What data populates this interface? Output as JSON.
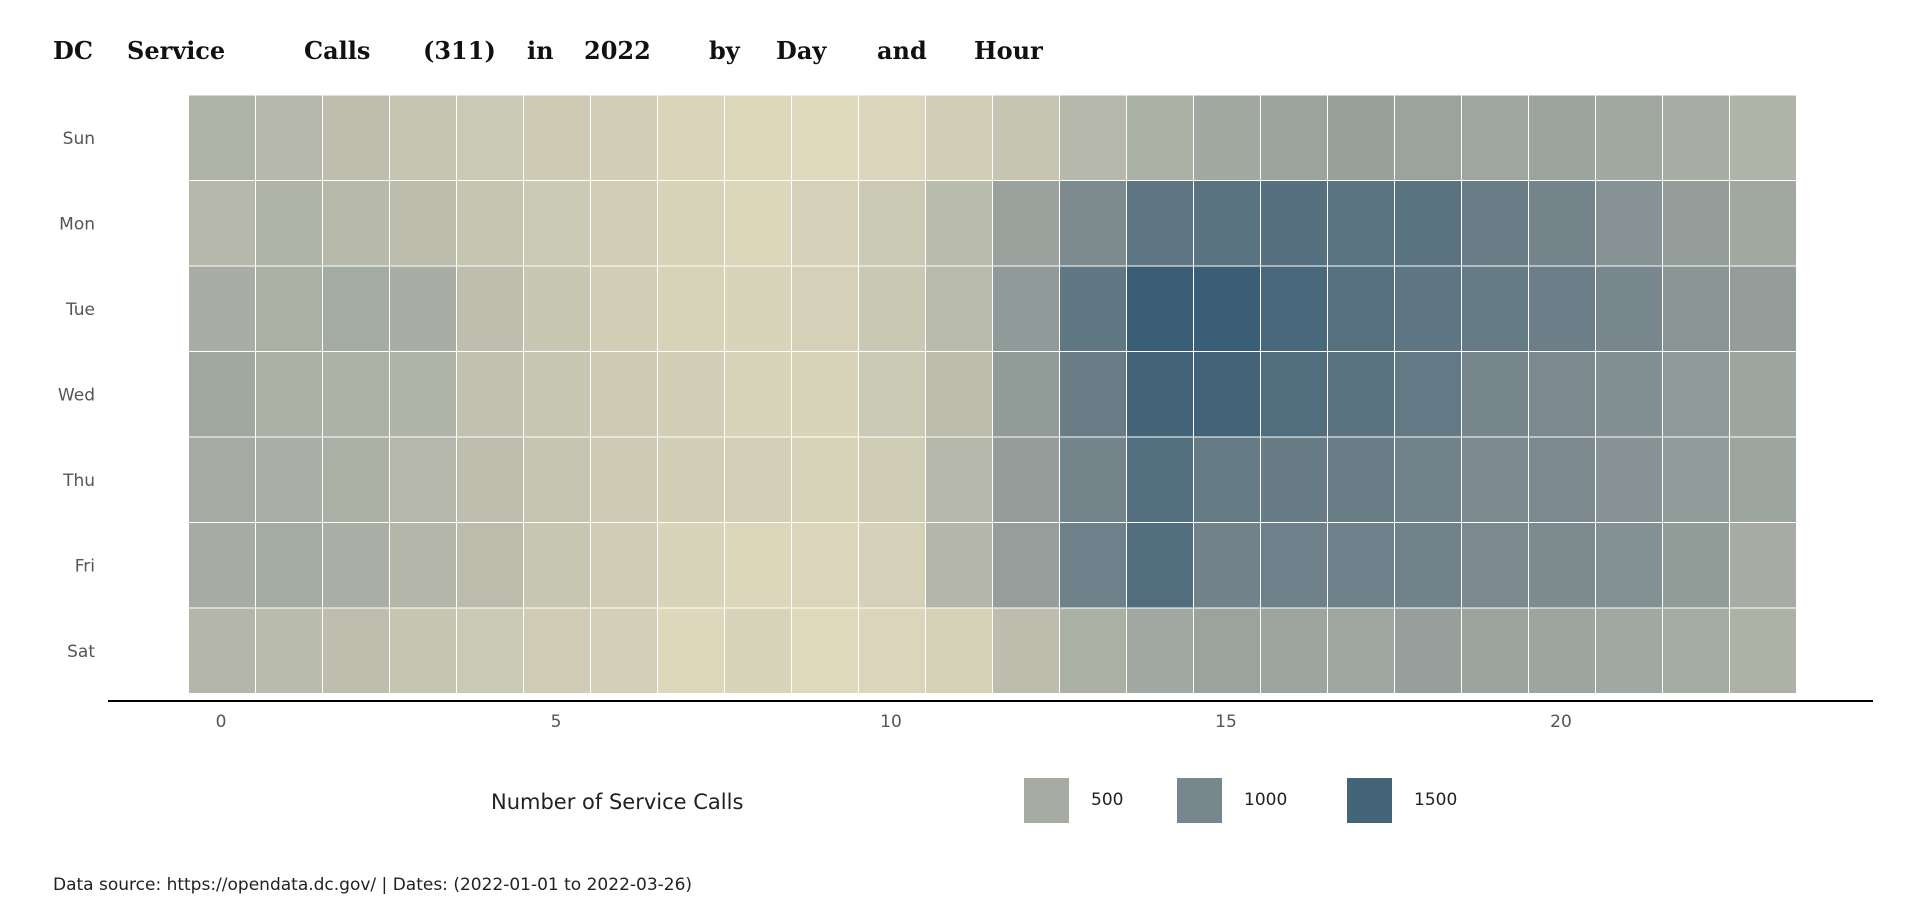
{
  "title_words": [
    "DC",
    "Service",
    "Calls",
    "(311)",
    "in",
    "2022",
    "by",
    "Day",
    "and",
    "Hour"
  ],
  "chart_data": {
    "type": "heatmap",
    "title": "DC Service Calls (311) in 2022 by Day and Hour",
    "x": [
      0,
      1,
      2,
      3,
      4,
      5,
      6,
      7,
      8,
      9,
      10,
      11,
      12,
      13,
      14,
      15,
      16,
      17,
      18,
      19,
      20,
      21,
      22,
      23
    ],
    "x_ticks": [
      "0",
      "5",
      "10",
      "15",
      "20"
    ],
    "y": [
      "Sun",
      "Mon",
      "Tue",
      "Wed",
      "Thu",
      "Fri",
      "Sat"
    ],
    "values": [
      [
        430,
        380,
        320,
        270,
        220,
        200,
        160,
        100,
        70,
        50,
        90,
        160,
        260,
        380,
        460,
        540,
        620,
        650,
        620,
        580,
        610,
        560,
        480,
        420
      ],
      [
        380,
        420,
        370,
        330,
        260,
        210,
        170,
        120,
        80,
        140,
        220,
        350,
        640,
        950,
        1250,
        1300,
        1330,
        1280,
        1300,
        1150,
        1050,
        850,
        700,
        560
      ],
      [
        480,
        460,
        520,
        480,
        320,
        240,
        170,
        120,
        110,
        140,
        230,
        350,
        740,
        1230,
        1600,
        1600,
        1450,
        1320,
        1250,
        1180,
        1120,
        1000,
        800,
        700
      ],
      [
        560,
        460,
        440,
        420,
        290,
        250,
        200,
        160,
        110,
        110,
        220,
        340,
        720,
        1150,
        1500,
        1520,
        1380,
        1300,
        1200,
        1010,
        960,
        880,
        750,
        600
      ],
      [
        510,
        470,
        460,
        390,
        320,
        260,
        200,
        160,
        150,
        120,
        190,
        380,
        700,
        1050,
        1350,
        1180,
        1160,
        1150,
        1080,
        960,
        960,
        850,
        730,
        600
      ],
      [
        500,
        520,
        470,
        400,
        340,
        250,
        180,
        110,
        80,
        90,
        140,
        400,
        690,
        1100,
        1370,
        1070,
        1100,
        1100,
        1080,
        960,
        950,
        870,
        720,
        500
      ],
      [
        400,
        350,
        320,
        260,
        220,
        190,
        150,
        70,
        110,
        60,
        90,
        130,
        330,
        460,
        550,
        620,
        600,
        580,
        670,
        610,
        590,
        550,
        520,
        440
      ]
    ],
    "xlim": [
      0,
      23
    ],
    "grid": false,
    "legend": {
      "title": "Number of Service Calls",
      "position": "bottom",
      "breaks": [
        {
          "label": "500",
          "value": 500
        },
        {
          "label": "1000",
          "value": 1000
        },
        {
          "label": "1500",
          "value": 1500
        }
      ]
    },
    "color_stops": [
      {
        "value": 50,
        "color": "#e0dabd"
      },
      {
        "value": 500,
        "color": "#a6aca3"
      },
      {
        "value": 1000,
        "color": "#78878d"
      },
      {
        "value": 1600,
        "color": "#3a5e75"
      }
    ]
  },
  "caption": "Data source: https://opendata.dc.gov/ | Dates: (2022-01-01 to 2022-03-26)"
}
